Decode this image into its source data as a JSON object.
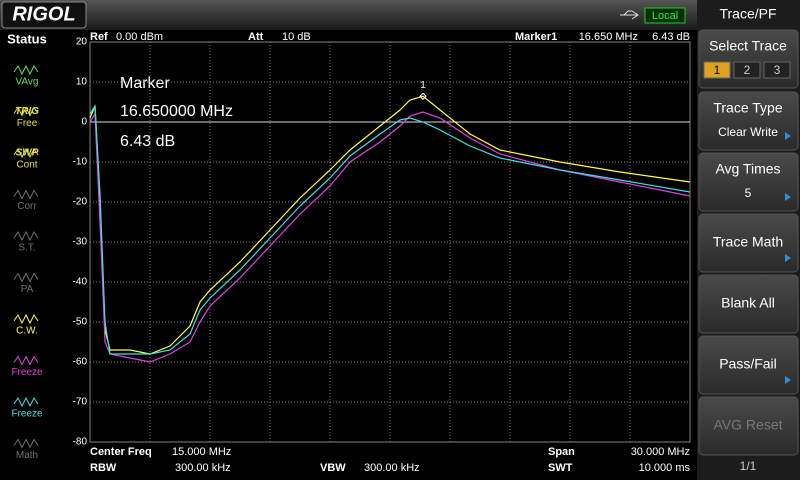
{
  "header": {
    "logo": "RIGOL",
    "remote": "Local"
  },
  "status": {
    "title": "Status",
    "items": [
      {
        "label": "VAvg",
        "color": "#60e060"
      },
      {
        "title": "TRIG",
        "label": "Free",
        "color": "#e0e040"
      },
      {
        "title": "SWP",
        "label": "Cont",
        "color": "#e0e040"
      },
      {
        "label": "Corr",
        "color": "#707070"
      },
      {
        "label": "S.T.",
        "color": "#707070"
      },
      {
        "label": "PA",
        "color": "#707070"
      },
      {
        "label": "C.W.",
        "color": "#ffff40"
      },
      {
        "label": "Freeze",
        "color": "#e040e0"
      },
      {
        "label": "Freeze",
        "color": "#40e0e0"
      },
      {
        "label": "Math",
        "color": "#707070"
      }
    ]
  },
  "info": {
    "ref_label": "Ref",
    "ref_value": "0.00 dBm",
    "att_label": "Att",
    "att_value": "10 dB",
    "marker_label": "Marker1",
    "marker_freq": "16.650 MHz",
    "marker_amp": "6.43 dB",
    "center_label": "Center Freq",
    "center_value": "15.000 MHz",
    "span_label": "Span",
    "span_value": "30.000 MHz",
    "rbw_label": "RBW",
    "rbw_value": "300.00 kHz",
    "vbw_label": "VBW",
    "vbw_value": "300.00 kHz",
    "swt_label": "SWT",
    "swt_value": "10.000 ms"
  },
  "chart_data": {
    "type": "line",
    "annotations": [
      "Marker",
      "16.650000 MHz",
      "6.43 dB"
    ],
    "x": [
      0,
      0.25,
      0.5,
      0.75,
      1,
      2,
      3,
      4,
      5,
      5.5,
      6,
      7.5,
      9,
      10.5,
      12,
      13,
      14.5,
      15.5,
      16,
      16.65,
      17.5,
      19,
      20.5,
      23.5,
      26.5,
      30
    ],
    "series": [
      {
        "name": "Trace 1",
        "color": "#ffff40",
        "values": [
          1,
          4,
          -20,
          -52,
          -57,
          -57,
          -58,
          -56,
          -51,
          -45,
          -42,
          -35,
          -27,
          -19,
          -12,
          -7,
          -1,
          3,
          5.5,
          6.43,
          3,
          -3,
          -7,
          -10,
          -12.5,
          -15
        ]
      },
      {
        "name": "Trace 2",
        "color": "#e040e0",
        "values": [
          0,
          2,
          -25,
          -55,
          -58,
          -59,
          -60,
          -58,
          -55,
          -50,
          -46,
          -39,
          -31,
          -23,
          -16,
          -10,
          -5,
          -1,
          1.5,
          2.5,
          1,
          -4,
          -8,
          -12,
          -15,
          -18.5
        ]
      },
      {
        "name": "Trace 3",
        "color": "#40e0e0",
        "values": [
          2,
          4,
          -18,
          -50,
          -58,
          -58,
          -58,
          -57,
          -53,
          -47,
          -44,
          -37,
          -29,
          -21,
          -14,
          -8.5,
          -3,
          0.5,
          1,
          0,
          -2,
          -6,
          -9,
          -12,
          -14.5,
          -17.5
        ]
      }
    ],
    "marker": {
      "label": "1",
      "x": 16.65,
      "y": 6.43
    },
    "display_line": 0,
    "xlim": [
      0,
      30
    ],
    "xticks": [
      0,
      3,
      6,
      9,
      12,
      15,
      18,
      21,
      24,
      27,
      30
    ],
    "ylim": [
      -80,
      20
    ],
    "yticks": [
      20,
      10,
      0,
      -10,
      -20,
      -30,
      -40,
      -50,
      -60,
      -70,
      -80
    ],
    "grid": true
  },
  "menu": {
    "title": "Trace/PF",
    "buttons": [
      {
        "label": "Select Trace",
        "options": [
          "1",
          "2",
          "3"
        ]
      },
      {
        "label": "Trace Type",
        "value": "Clear Write"
      },
      {
        "label": "Avg Times",
        "value": "5"
      },
      {
        "label": "Trace Math"
      },
      {
        "label": "Blank All"
      },
      {
        "label": "Pass/Fail"
      },
      {
        "label": "AVG Reset"
      }
    ],
    "page": "1/1"
  }
}
